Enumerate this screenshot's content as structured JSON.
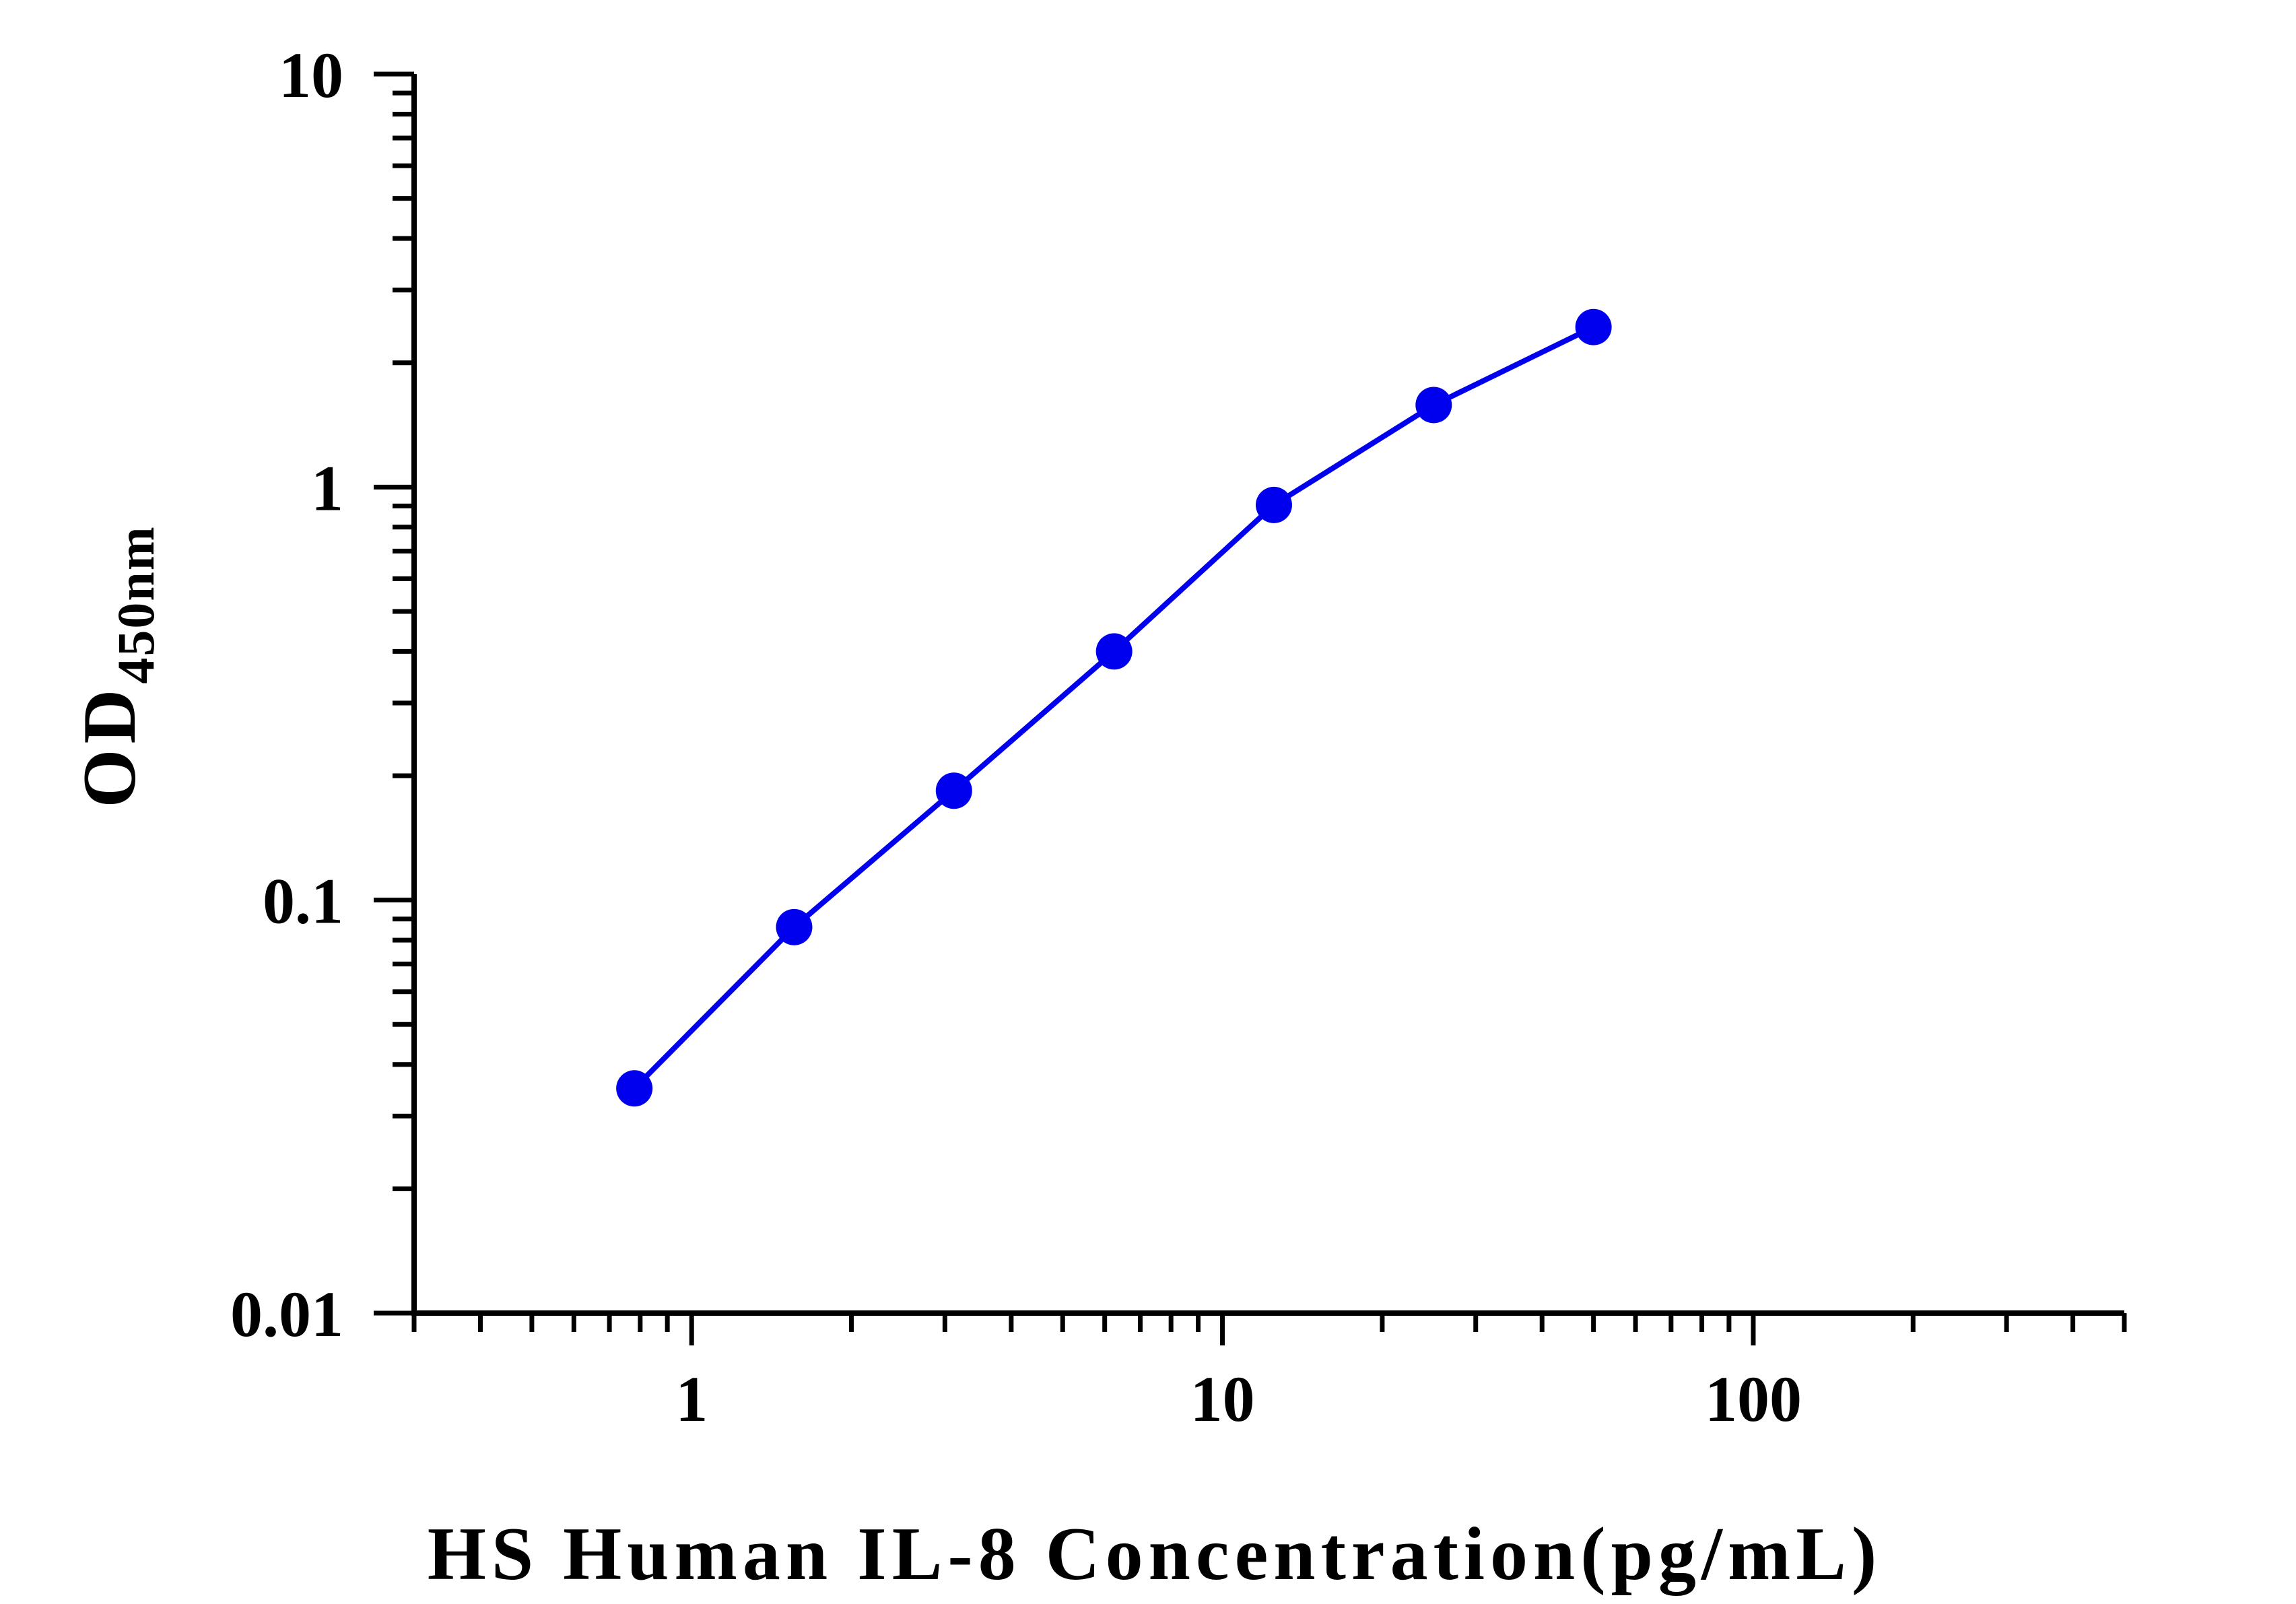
{
  "chart_data": {
    "type": "line",
    "title": "",
    "xlabel": "HS Human IL-8 Concentration(pg/mL)",
    "ylabel": "OD",
    "ylabel_subscript": "450nm",
    "x_scale": "log",
    "y_scale": "log",
    "xlim": [
      0.3,
      500
    ],
    "ylim": [
      0.01,
      10
    ],
    "x_tick_labels": [
      "1",
      "10",
      "100"
    ],
    "y_tick_labels": [
      "0.01",
      "0.1",
      "1",
      "10"
    ],
    "grid": false,
    "legend": "none",
    "color": "#0000ee",
    "series": [
      {
        "x": [
          0.78,
          1.56,
          3.12,
          6.25,
          12.5,
          25,
          50
        ],
        "y": [
          0.035,
          0.086,
          0.184,
          0.4,
          0.905,
          1.58,
          2.44
        ]
      }
    ]
  }
}
